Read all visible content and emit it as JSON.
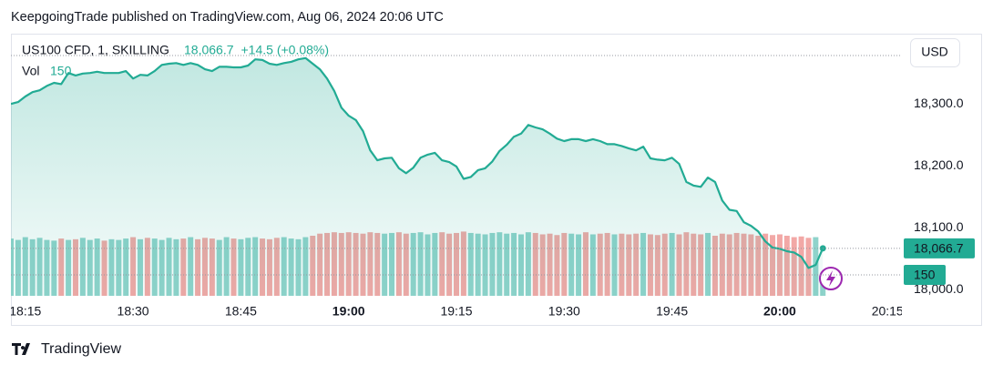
{
  "header": "KeepgoingTrade published on TradingView.com, Aug 06, 2024 20:06 UTC",
  "footer": "TradingView",
  "chart_data": {
    "type": "line",
    "currency": "USD",
    "x": [
      "18:13",
      "18:14",
      "18:15",
      "18:16",
      "18:17",
      "18:18",
      "18:19",
      "18:20",
      "18:21",
      "18:22",
      "18:23",
      "18:24",
      "18:25",
      "18:26",
      "18:27",
      "18:28",
      "18:29",
      "18:30",
      "18:31",
      "18:32",
      "18:33",
      "18:34",
      "18:35",
      "18:36",
      "18:37",
      "18:38",
      "18:39",
      "18:40",
      "18:41",
      "18:42",
      "18:43",
      "18:44",
      "18:45",
      "18:46",
      "18:47",
      "18:48",
      "18:49",
      "18:50",
      "18:51",
      "18:52",
      "18:53",
      "18:54",
      "18:55",
      "18:56",
      "18:57",
      "18:58",
      "18:59",
      "19:00",
      "19:01",
      "19:02",
      "19:03",
      "19:04",
      "19:05",
      "19:06",
      "19:07",
      "19:08",
      "19:09",
      "19:10",
      "19:11",
      "19:12",
      "19:13",
      "19:14",
      "19:15",
      "19:16",
      "19:17",
      "19:18",
      "19:19",
      "19:20",
      "19:21",
      "19:22",
      "19:23",
      "19:24",
      "19:25",
      "19:26",
      "19:27",
      "19:28",
      "19:29",
      "19:30",
      "19:31",
      "19:32",
      "19:33",
      "19:34",
      "19:35",
      "19:36",
      "19:37",
      "19:38",
      "19:39",
      "19:40",
      "19:41",
      "19:42",
      "19:43",
      "19:44",
      "19:45",
      "19:46",
      "19:47",
      "19:48",
      "19:49",
      "19:50",
      "19:51",
      "19:52",
      "19:53",
      "19:54",
      "19:55",
      "19:56",
      "19:57",
      "19:58",
      "19:59",
      "20:00",
      "20:01",
      "20:02",
      "20:03",
      "20:04",
      "20:05",
      "20:06"
    ],
    "xlim": [
      "18:13",
      "20:17"
    ],
    "xticks": [
      "18:15",
      "18:30",
      "18:45",
      "19:00",
      "19:15",
      "19:30",
      "19:45",
      "20:00",
      "20:15"
    ],
    "ylim": [
      17990,
      18412
    ],
    "yticks": [
      {
        "value": 18000,
        "label": "18,000.0"
      },
      {
        "value": 18100,
        "label": "18,100.0"
      },
      {
        "value": 18200,
        "label": "18,200.0"
      },
      {
        "value": 18300,
        "label": "18,300.0"
      }
    ],
    "y2lim": [
      0,
      1870
    ],
    "grid": false,
    "series": [
      {
        "name": "US100 CFD, 1, SKILLING",
        "color": "#22ab94",
        "last_label": "18,066.7",
        "change_label": "+14.5 (+0.08%)",
        "values": [
          18300,
          18303,
          18312,
          18319,
          18322,
          18329,
          18334,
          18332,
          18350,
          18346,
          18349,
          18350,
          18352,
          18350,
          18350,
          18350,
          18353,
          18341,
          18347,
          18346,
          18353,
          18363,
          18365,
          18366,
          18363,
          18366,
          18363,
          18356,
          18353,
          18360,
          18360,
          18359,
          18359,
          18362,
          18372,
          18371,
          18365,
          18363,
          18366,
          18368,
          18372,
          18374,
          18365,
          18356,
          18341,
          18321,
          18294,
          18281,
          18274,
          18256,
          18225,
          18209,
          18212,
          18213,
          18196,
          18188,
          18197,
          18213,
          18218,
          18221,
          18209,
          18206,
          18199,
          18179,
          18182,
          18193,
          18196,
          18207,
          18224,
          18234,
          18247,
          18252,
          18266,
          18262,
          18259,
          18252,
          18244,
          18240,
          18243,
          18243,
          18240,
          18243,
          18240,
          18235,
          18235,
          18232,
          18228,
          18225,
          18231,
          18212,
          18210,
          18209,
          18213,
          18203,
          18174,
          18168,
          18166,
          18181,
          18174,
          18144,
          18129,
          18127,
          18109,
          18103,
          18094,
          18078,
          18068,
          18066,
          18062,
          18060,
          18053,
          18035,
          18040,
          18066.7
        ]
      },
      {
        "name": "Vol",
        "type": "bar",
        "axis": "y2",
        "up_color": "#8fd3cb",
        "down_color": "#f2a8a6",
        "values": [
          410,
          400,
          420,
          405,
          415,
          400,
          395,
          410,
          400,
          405,
          415,
          400,
          410,
          395,
          405,
          400,
          410,
          420,
          405,
          415,
          410,
          400,
          415,
          405,
          410,
          420,
          405,
          415,
          410,
          400,
          420,
          410,
          405,
          415,
          420,
          410,
          405,
          415,
          420,
          410,
          405,
          420,
          430,
          445,
          450,
          455,
          450,
          455,
          450,
          445,
          455,
          450,
          445,
          450,
          455,
          445,
          450,
          455,
          440,
          450,
          455,
          445,
          450,
          460,
          450,
          445,
          440,
          450,
          455,
          445,
          450,
          440,
          455,
          450,
          440,
          445,
          435,
          450,
          445,
          440,
          455,
          440,
          445,
          450,
          440,
          445,
          440,
          445,
          450,
          440,
          435,
          445,
          450,
          440,
          455,
          445,
          440,
          450,
          430,
          445,
          440,
          450,
          445,
          440,
          430,
          445,
          435,
          440,
          430,
          420,
          425,
          415,
          420,
          150
        ]
      }
    ]
  }
}
